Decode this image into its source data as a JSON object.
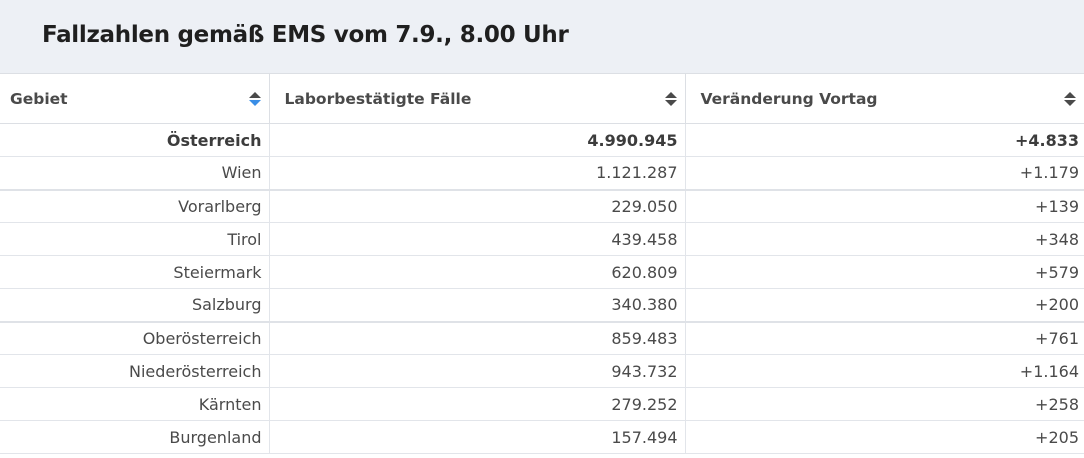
{
  "header": {
    "title": "Fallzahlen gemäß EMS vom 7.9., 8.00 Uhr"
  },
  "table": {
    "columns": [
      {
        "label": "Gebiet",
        "sort_icon": "sort-icon-active"
      },
      {
        "label": "Laborbestätigte Fälle",
        "sort_icon": "sort-icon"
      },
      {
        "label": "Veränderung Vortag",
        "sort_icon": "sort-icon"
      }
    ],
    "rows": [
      {
        "gebiet": "Österreich",
        "faelle": "4.990.945",
        "veraenderung": "+4.833"
      },
      {
        "gebiet": "Wien",
        "faelle": "1.121.287",
        "veraenderung": "+1.179"
      },
      {
        "gebiet": "Vorarlberg",
        "faelle": "229.050",
        "veraenderung": "+139"
      },
      {
        "gebiet": "Tirol",
        "faelle": "439.458",
        "veraenderung": "+348"
      },
      {
        "gebiet": "Steiermark",
        "faelle": "620.809",
        "veraenderung": "+579"
      },
      {
        "gebiet": "Salzburg",
        "faelle": "340.380",
        "veraenderung": "+200"
      },
      {
        "gebiet": "Oberösterreich",
        "faelle": "859.483",
        "veraenderung": "+761"
      },
      {
        "gebiet": "Niederösterreich",
        "faelle": "943.732",
        "veraenderung": "+1.164"
      },
      {
        "gebiet": "Kärnten",
        "faelle": "279.252",
        "veraenderung": "+258"
      },
      {
        "gebiet": "Burgenland",
        "faelle": "157.494",
        "veraenderung": "+205"
      }
    ]
  },
  "colors": {
    "header_bg": "#edf0f5",
    "sort_active": "#3a8ee6",
    "text": "#4a4a4a"
  }
}
